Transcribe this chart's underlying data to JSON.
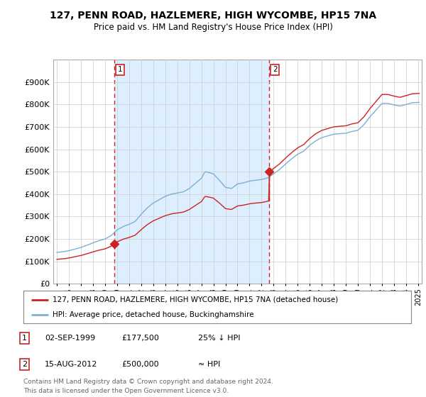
{
  "title": "127, PENN ROAD, HAZLEMERE, HIGH WYCOMBE, HP15 7NA",
  "subtitle": "Price paid vs. HM Land Registry's House Price Index (HPI)",
  "hpi_color": "#7ab0d4",
  "price_color": "#cc2222",
  "marker_color": "#cc2222",
  "vline_color": "#cc2222",
  "shade_color": "#ddeeff",
  "ylim": [
    0,
    1000000
  ],
  "yticks": [
    0,
    100000,
    200000,
    300000,
    400000,
    500000,
    600000,
    700000,
    800000,
    900000
  ],
  "ytick_labels": [
    "£0",
    "£100K",
    "£200K",
    "£300K",
    "£400K",
    "£500K",
    "£600K",
    "£700K",
    "£800K",
    "£900K"
  ],
  "sale1_date": 1999.75,
  "sale1_price": 177500,
  "sale1_label": "1",
  "sale2_date": 2012.62,
  "sale2_price": 500000,
  "sale2_label": "2",
  "legend_line1": "127, PENN ROAD, HAZLEMERE, HIGH WYCOMBE, HP15 7NA (detached house)",
  "legend_line2": "HPI: Average price, detached house, Buckinghamshire",
  "table_rows": [
    {
      "num": "1",
      "date": "02-SEP-1999",
      "price": "£177,500",
      "hpi": "25% ↓ HPI"
    },
    {
      "num": "2",
      "date": "15-AUG-2012",
      "price": "£500,000",
      "hpi": "≈ HPI"
    }
  ],
  "footer": "Contains HM Land Registry data © Crown copyright and database right 2024.\nThis data is licensed under the Open Government Licence v3.0.",
  "background_color": "#ffffff",
  "grid_color": "#cccccc"
}
